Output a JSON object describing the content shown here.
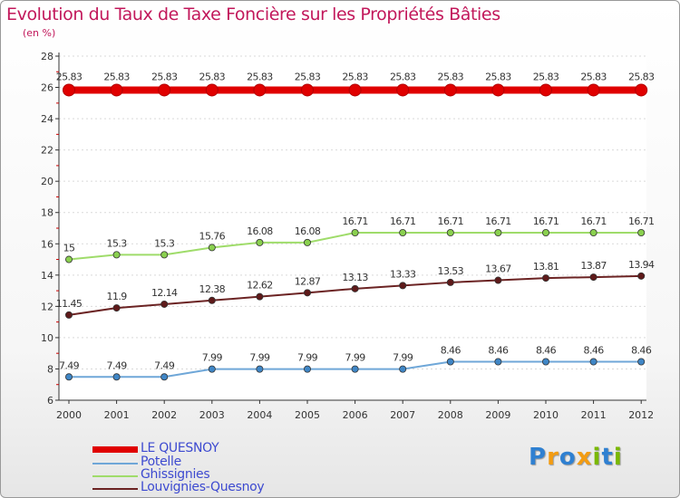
{
  "title": "Evolution du Taux de Taxe Foncière sur les Propriétés Bâties",
  "subtitle": "(en %)",
  "logo": {
    "letters": [
      "P",
      "r",
      "o",
      "x",
      "i",
      "t",
      "i"
    ],
    "colors": [
      "#2f80d1",
      "#f39c12",
      "#2f80d1",
      "#f39c12",
      "#7ab800",
      "#2f80d1",
      "#7ab800"
    ]
  },
  "chart_data": {
    "type": "line",
    "title": "Evolution du Taux de Taxe Foncière sur les Propriétés Bâties",
    "ylabel": "(en %)",
    "xlabel": "",
    "ylim": [
      6,
      28
    ],
    "yticks": [
      "6",
      "8",
      "10",
      "12",
      "14",
      "16",
      "18",
      "20",
      "22",
      "24",
      "26",
      "28"
    ],
    "categories": [
      "2000",
      "2001",
      "2002",
      "2003",
      "2004",
      "2005",
      "2006",
      "2007",
      "2008",
      "2009",
      "2010",
      "2011",
      "2012"
    ],
    "series": [
      {
        "name": "LE QUESNOY",
        "color": "#e00000",
        "marker": "#e00000",
        "values": [
          25.83,
          25.83,
          25.83,
          25.83,
          25.83,
          25.83,
          25.83,
          25.83,
          25.83,
          25.83,
          25.83,
          25.83,
          25.83
        ],
        "labels": [
          "25.83",
          "25.83",
          "25.83",
          "25.83",
          "25.83",
          "25.83",
          "25.83",
          "25.83",
          "25.83",
          "25.83",
          "25.83",
          "25.83",
          "25.83"
        ]
      },
      {
        "name": "Potelle",
        "color": "#6fa7d8",
        "marker": "#3f86c6",
        "values": [
          7.49,
          7.49,
          7.49,
          7.99,
          7.99,
          7.99,
          7.99,
          7.99,
          8.46,
          8.46,
          8.46,
          8.46,
          8.46
        ],
        "labels": [
          "7.49",
          "7.49",
          "7.49",
          "7.99",
          "7.99",
          "7.99",
          "7.99",
          "7.99",
          "8.46",
          "8.46",
          "8.46",
          "8.46",
          "8.46"
        ]
      },
      {
        "name": "Ghissignies",
        "color": "#9fdc6a",
        "marker": "#8ad04f",
        "values": [
          15,
          15.3,
          15.3,
          15.76,
          16.08,
          16.08,
          16.71,
          16.71,
          16.71,
          16.71,
          16.71,
          16.71,
          16.71
        ],
        "labels": [
          "15",
          "15.3",
          "15.3",
          "15.76",
          "16.08",
          "16.08",
          "16.71",
          "16.71",
          "16.71",
          "16.71",
          "16.71",
          "16.71",
          "16.71"
        ]
      },
      {
        "name": "Louvignies-Quesnoy",
        "color": "#6b2323",
        "marker": "#5e1a1a",
        "values": [
          11.45,
          11.9,
          12.14,
          12.38,
          12.62,
          12.87,
          13.13,
          13.33,
          13.53,
          13.67,
          13.81,
          13.87,
          13.94
        ],
        "labels": [
          "11.45",
          "11.9",
          "12.14",
          "12.38",
          "12.62",
          "12.87",
          "13.13",
          "13.33",
          "13.53",
          "13.67",
          "13.81",
          "13.87",
          "13.94"
        ]
      }
    ],
    "legend_position": "bottom-left"
  }
}
